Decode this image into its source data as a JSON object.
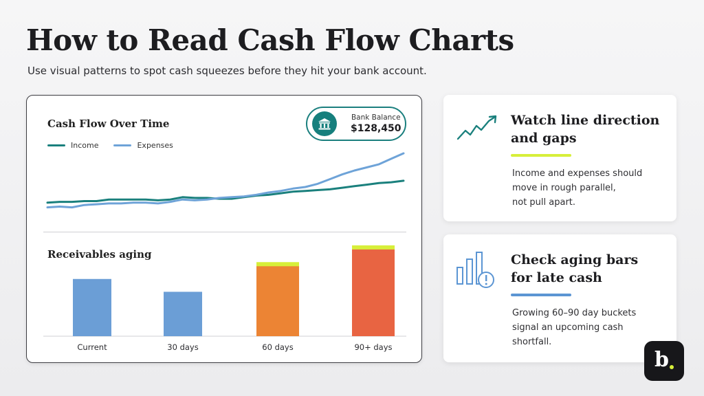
{
  "page": {
    "title": "How to Read Cash Flow Charts",
    "subtitle": "Use visual patterns to spot cash squeezes before they hit your bank account."
  },
  "main_card": {
    "chart_title": "Cash Flow Over Time",
    "legend": {
      "income": "Income",
      "expenses": "Expenses"
    },
    "bank_badge": {
      "label": "Bank Balance",
      "value": "$128,450",
      "icon": "bank-icon"
    },
    "aging_title": "Receivables aging"
  },
  "colors": {
    "income": "#1a807d",
    "expenses": "#6ea3d8",
    "current": "#6b9ed6",
    "days30": "#6b9ed6",
    "days60": "#ec8434",
    "days90": "#e86442",
    "highlight": "#d7ef3a"
  },
  "chart_data": [
    {
      "type": "line",
      "title": "Cash Flow Over Time",
      "x": [
        1,
        2,
        3,
        4,
        5,
        6,
        7,
        8,
        9,
        10,
        11,
        12,
        13,
        14,
        15,
        16,
        17,
        18,
        19,
        20,
        21,
        22,
        23,
        24,
        25,
        26,
        27,
        28,
        29,
        30
      ],
      "series": [
        {
          "name": "Income",
          "values": [
            23,
            24,
            24,
            25,
            25,
            27,
            27,
            27,
            27,
            26,
            27,
            30,
            29,
            29,
            28,
            28,
            30,
            32,
            33,
            35,
            37,
            38,
            39,
            40,
            42,
            44,
            46,
            48,
            49,
            51
          ]
        },
        {
          "name": "Expenses",
          "values": [
            17,
            18,
            17,
            20,
            21,
            22,
            22,
            23,
            23,
            22,
            24,
            27,
            26,
            27,
            29,
            30,
            31,
            33,
            36,
            38,
            41,
            43,
            47,
            53,
            59,
            64,
            68,
            72,
            79,
            86
          ]
        }
      ],
      "ylim": [
        0,
        100
      ],
      "grid": false,
      "legend_position": "top-left"
    },
    {
      "type": "bar",
      "title": "Receivables aging",
      "categories": [
        "Current",
        "30 days",
        "60 days",
        "90+ days"
      ],
      "values": [
        58,
        45,
        73,
        90
      ],
      "highlighted": [
        false,
        false,
        true,
        true
      ],
      "ylim": [
        0,
        92
      ]
    }
  ],
  "cards": [
    {
      "heading_lines": [
        "Watch line direction",
        "and gaps"
      ],
      "body_lines": [
        "Income and expenses should",
        "move in rough parallel,",
        "not pull apart."
      ],
      "icon": "trend-up-icon"
    },
    {
      "heading_lines": [
        "Check aging bars",
        "for late cash"
      ],
      "body_lines": [
        "Growing 60–90 day buckets",
        "signal an upcoming cash",
        "shortfall."
      ],
      "icon": "bar-alert-icon"
    }
  ],
  "logo": {
    "letter": "b"
  }
}
